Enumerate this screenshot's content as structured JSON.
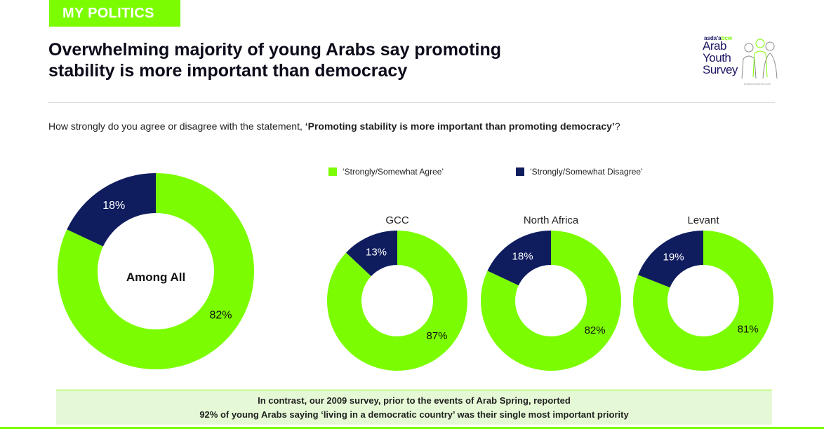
{
  "section_tag": "MY POLITICS",
  "headline": {
    "line1": "Overwhelming majority of young Arabs say promoting",
    "line2": "stability is more important than democracy"
  },
  "logo": {
    "brand_prefix": "asda'a",
    "brand_suffix": "bcw",
    "line1": "Arab",
    "line2": "Youth",
    "line3": "Survey",
    "url": "arabyouthsurvey.com"
  },
  "question": {
    "prefix": "How strongly do you agree or disagree with the statement, ",
    "statement": "‘Promoting stability is more important than promoting democracy’",
    "suffix": "?"
  },
  "colors": {
    "agree": "#7cfc00",
    "disagree": "#0f1c5e",
    "accent": "#7cfc00",
    "footer_bg": "#e6f9d6"
  },
  "chart_data": {
    "type": "pie",
    "series_labels": [
      "‘Strongly/Somewhat Agree’",
      "‘Strongly/Somewhat Disagree’"
    ],
    "legend": "top",
    "charts": [
      {
        "title": "",
        "center_label": "Among All",
        "agree": 82,
        "disagree": 18,
        "agree_label": "82%",
        "disagree_label": "18%"
      },
      {
        "title": "GCC",
        "center_label": "",
        "agree": 87,
        "disagree": 13,
        "agree_label": "87%",
        "disagree_label": "13%"
      },
      {
        "title": "North Africa",
        "center_label": "",
        "agree": 82,
        "disagree": 18,
        "agree_label": "82%",
        "disagree_label": "18%"
      },
      {
        "title": "Levant",
        "center_label": "",
        "agree": 81,
        "disagree": 19,
        "agree_label": "81%",
        "disagree_label": "19%"
      }
    ]
  },
  "footer": {
    "line1": "In contrast, our 2009 survey, prior to the events of Arab Spring, reported",
    "line2": "92% of young Arabs saying ‘living in a democratic country’ was their single most important priority"
  }
}
